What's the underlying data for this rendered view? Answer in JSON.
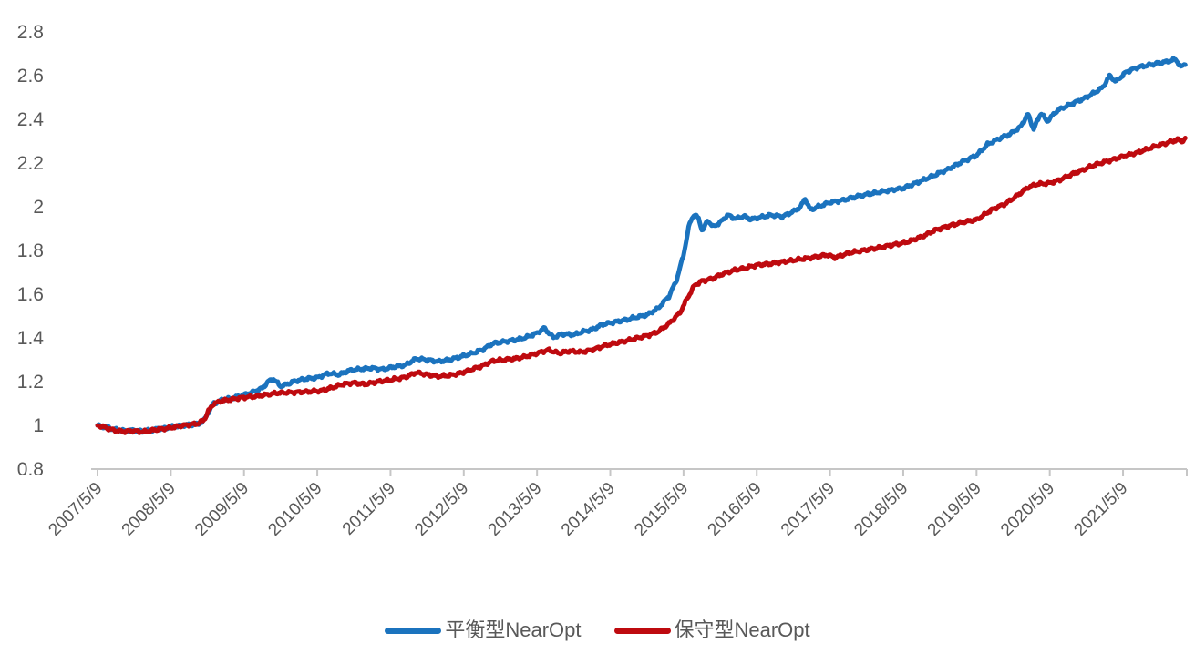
{
  "colors": {
    "background": "#FFFFFF",
    "axis_line": "#C6C6C6",
    "tick_label": "#595959",
    "series_blue": "#1B73BE",
    "series_red": "#BE0A0F"
  },
  "chart_data": {
    "type": "line",
    "title": "",
    "grid": "off",
    "legend_position": "bottom-center",
    "x_axis": {
      "tick_labels": [
        "2007/5/9",
        "2008/5/9",
        "2009/5/9",
        "2010/5/9",
        "2011/5/9",
        "2012/5/9",
        "2013/5/9",
        "2014/5/9",
        "2015/5/9",
        "2016/5/9",
        "2017/5/9",
        "2018/5/9",
        "2019/5/9",
        "2020/5/9",
        "2021/5/9"
      ],
      "label_rotation_deg": -45,
      "x_unit": "years since first label",
      "x_domain": [
        0,
        14.85
      ]
    },
    "y_axis": {
      "tick_labels": [
        "2.8",
        "2.6",
        "2.4",
        "2.2",
        "2",
        "1.8",
        "1.6",
        "1.4",
        "1.2",
        "1",
        "0.8"
      ],
      "min": 0.8,
      "max": 2.8,
      "tick_step": 0.2
    },
    "wiggle_amplitude": 0.0045,
    "series": [
      {
        "name": "平衡型NearOpt",
        "color": "#1B73BE",
        "points_t_years_value": [
          [
            0,
            1.0
          ],
          [
            0.1,
            0.992
          ],
          [
            0.22,
            0.982
          ],
          [
            0.35,
            0.975
          ],
          [
            0.5,
            0.978
          ],
          [
            0.62,
            0.973
          ],
          [
            0.8,
            0.982
          ],
          [
            0.95,
            0.988
          ],
          [
            1.1,
            0.997
          ],
          [
            1.25,
            1.003
          ],
          [
            1.38,
            1.006
          ],
          [
            1.46,
            1.025
          ],
          [
            1.52,
            1.065
          ],
          [
            1.58,
            1.1
          ],
          [
            1.7,
            1.115
          ],
          [
            1.85,
            1.125
          ],
          [
            2.0,
            1.14
          ],
          [
            2.12,
            1.152
          ],
          [
            2.25,
            1.17
          ],
          [
            2.33,
            1.2
          ],
          [
            2.4,
            1.213
          ],
          [
            2.5,
            1.178
          ],
          [
            2.6,
            1.19
          ],
          [
            2.72,
            1.205
          ],
          [
            2.85,
            1.213
          ],
          [
            3.0,
            1.218
          ],
          [
            3.15,
            1.238
          ],
          [
            3.3,
            1.232
          ],
          [
            3.45,
            1.252
          ],
          [
            3.6,
            1.258
          ],
          [
            3.75,
            1.262
          ],
          [
            3.9,
            1.256
          ],
          [
            4.05,
            1.268
          ],
          [
            4.2,
            1.275
          ],
          [
            4.35,
            1.305
          ],
          [
            4.5,
            1.3
          ],
          [
            4.65,
            1.292
          ],
          [
            4.8,
            1.3
          ],
          [
            4.95,
            1.313
          ],
          [
            5.1,
            1.328
          ],
          [
            5.25,
            1.345
          ],
          [
            5.4,
            1.375
          ],
          [
            5.55,
            1.383
          ],
          [
            5.7,
            1.39
          ],
          [
            5.85,
            1.402
          ],
          [
            6.0,
            1.422
          ],
          [
            6.1,
            1.445
          ],
          [
            6.22,
            1.402
          ],
          [
            6.35,
            1.418
          ],
          [
            6.5,
            1.414
          ],
          [
            6.62,
            1.428
          ],
          [
            6.75,
            1.438
          ],
          [
            6.9,
            1.462
          ],
          [
            7.05,
            1.472
          ],
          [
            7.2,
            1.482
          ],
          [
            7.35,
            1.494
          ],
          [
            7.5,
            1.505
          ],
          [
            7.65,
            1.535
          ],
          [
            7.8,
            1.59
          ],
          [
            7.9,
            1.66
          ],
          [
            8.0,
            1.78
          ],
          [
            8.08,
            1.92
          ],
          [
            8.14,
            1.965
          ],
          [
            8.2,
            1.95
          ],
          [
            8.26,
            1.888
          ],
          [
            8.33,
            1.94
          ],
          [
            8.4,
            1.908
          ],
          [
            8.5,
            1.928
          ],
          [
            8.6,
            1.962
          ],
          [
            8.72,
            1.945
          ],
          [
            8.82,
            1.958
          ],
          [
            8.92,
            1.942
          ],
          [
            9.05,
            1.952
          ],
          [
            9.2,
            1.962
          ],
          [
            9.35,
            1.955
          ],
          [
            9.5,
            1.978
          ],
          [
            9.6,
            2.0
          ],
          [
            9.66,
            2.038
          ],
          [
            9.73,
            1.985
          ],
          [
            9.85,
            2.002
          ],
          [
            10.0,
            2.02
          ],
          [
            10.2,
            2.032
          ],
          [
            10.4,
            2.05
          ],
          [
            10.6,
            2.062
          ],
          [
            10.8,
            2.075
          ],
          [
            11.0,
            2.085
          ],
          [
            11.2,
            2.112
          ],
          [
            11.4,
            2.14
          ],
          [
            11.6,
            2.17
          ],
          [
            11.8,
            2.205
          ],
          [
            12.0,
            2.235
          ],
          [
            12.15,
            2.285
          ],
          [
            12.3,
            2.31
          ],
          [
            12.46,
            2.333
          ],
          [
            12.6,
            2.365
          ],
          [
            12.7,
            2.425
          ],
          [
            12.78,
            2.355
          ],
          [
            12.88,
            2.43
          ],
          [
            12.96,
            2.39
          ],
          [
            13.1,
            2.44
          ],
          [
            13.3,
            2.472
          ],
          [
            13.45,
            2.492
          ],
          [
            13.6,
            2.52
          ],
          [
            13.72,
            2.545
          ],
          [
            13.82,
            2.6
          ],
          [
            13.9,
            2.572
          ],
          [
            14.05,
            2.618
          ],
          [
            14.2,
            2.638
          ],
          [
            14.35,
            2.648
          ],
          [
            14.5,
            2.658
          ],
          [
            14.62,
            2.665
          ],
          [
            14.72,
            2.675
          ],
          [
            14.79,
            2.638
          ],
          [
            14.85,
            2.655
          ]
        ]
      },
      {
        "name": "保守型NearOpt",
        "color": "#BE0A0F",
        "points_t_years_value": [
          [
            0,
            1.0
          ],
          [
            0.1,
            0.99
          ],
          [
            0.22,
            0.978
          ],
          [
            0.35,
            0.972
          ],
          [
            0.5,
            0.975
          ],
          [
            0.62,
            0.97
          ],
          [
            0.8,
            0.98
          ],
          [
            0.95,
            0.986
          ],
          [
            1.1,
            0.996
          ],
          [
            1.25,
            1.004
          ],
          [
            1.38,
            1.008
          ],
          [
            1.46,
            1.028
          ],
          [
            1.52,
            1.068
          ],
          [
            1.58,
            1.098
          ],
          [
            1.7,
            1.112
          ],
          [
            1.85,
            1.12
          ],
          [
            2.0,
            1.128
          ],
          [
            2.15,
            1.132
          ],
          [
            2.3,
            1.14
          ],
          [
            2.45,
            1.148
          ],
          [
            2.6,
            1.15
          ],
          [
            2.75,
            1.152
          ],
          [
            2.9,
            1.155
          ],
          [
            3.05,
            1.158
          ],
          [
            3.2,
            1.172
          ],
          [
            3.35,
            1.188
          ],
          [
            3.5,
            1.195
          ],
          [
            3.65,
            1.188
          ],
          [
            3.8,
            1.198
          ],
          [
            4.0,
            1.208
          ],
          [
            4.2,
            1.22
          ],
          [
            4.35,
            1.242
          ],
          [
            4.5,
            1.232
          ],
          [
            4.65,
            1.224
          ],
          [
            4.8,
            1.228
          ],
          [
            4.95,
            1.238
          ],
          [
            5.1,
            1.255
          ],
          [
            5.25,
            1.272
          ],
          [
            5.4,
            1.295
          ],
          [
            5.55,
            1.3
          ],
          [
            5.7,
            1.305
          ],
          [
            5.85,
            1.315
          ],
          [
            6.0,
            1.33
          ],
          [
            6.15,
            1.345
          ],
          [
            6.3,
            1.33
          ],
          [
            6.45,
            1.34
          ],
          [
            6.6,
            1.335
          ],
          [
            6.75,
            1.345
          ],
          [
            6.9,
            1.362
          ],
          [
            7.05,
            1.375
          ],
          [
            7.2,
            1.385
          ],
          [
            7.35,
            1.398
          ],
          [
            7.5,
            1.41
          ],
          [
            7.65,
            1.428
          ],
          [
            7.8,
            1.465
          ],
          [
            7.95,
            1.515
          ],
          [
            8.05,
            1.58
          ],
          [
            8.15,
            1.64
          ],
          [
            8.25,
            1.66
          ],
          [
            8.4,
            1.672
          ],
          [
            8.55,
            1.695
          ],
          [
            8.7,
            1.71
          ],
          [
            8.85,
            1.72
          ],
          [
            9.0,
            1.733
          ],
          [
            9.2,
            1.74
          ],
          [
            9.4,
            1.75
          ],
          [
            9.6,
            1.76
          ],
          [
            9.8,
            1.77
          ],
          [
            9.95,
            1.78
          ],
          [
            10.08,
            1.768
          ],
          [
            10.25,
            1.788
          ],
          [
            10.45,
            1.8
          ],
          [
            10.65,
            1.812
          ],
          [
            10.85,
            1.825
          ],
          [
            11.05,
            1.838
          ],
          [
            11.25,
            1.862
          ],
          [
            11.45,
            1.895
          ],
          [
            11.65,
            1.915
          ],
          [
            11.85,
            1.932
          ],
          [
            12.0,
            1.94
          ],
          [
            12.2,
            1.985
          ],
          [
            12.4,
            2.015
          ],
          [
            12.55,
            2.05
          ],
          [
            12.7,
            2.088
          ],
          [
            12.82,
            2.103
          ],
          [
            13.0,
            2.108
          ],
          [
            13.15,
            2.125
          ],
          [
            13.3,
            2.148
          ],
          [
            13.45,
            2.168
          ],
          [
            13.6,
            2.19
          ],
          [
            13.8,
            2.21
          ],
          [
            14.0,
            2.23
          ],
          [
            14.2,
            2.248
          ],
          [
            14.4,
            2.272
          ],
          [
            14.6,
            2.292
          ],
          [
            14.75,
            2.308
          ],
          [
            14.81,
            2.3
          ],
          [
            14.85,
            2.31
          ]
        ]
      }
    ]
  }
}
